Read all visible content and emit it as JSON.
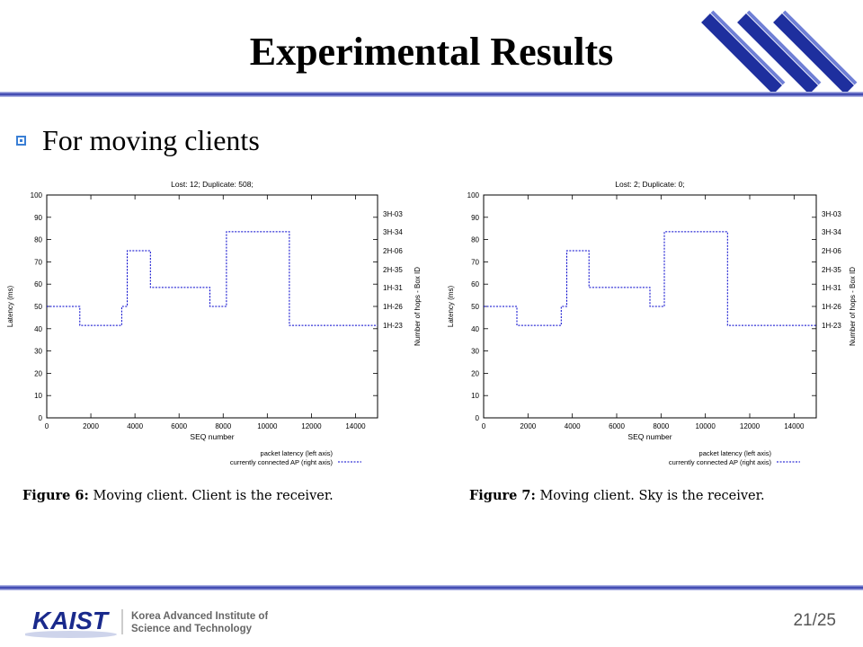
{
  "slide": {
    "title": "Experimental Results",
    "bullet": "For moving clients",
    "page_number": "21/25",
    "logo": {
      "wordmark": "KAIST",
      "line1": "Korea Advanced Institute of",
      "line2": "Science and Technology"
    },
    "colors": {
      "accent_blue": "#2a35a8",
      "bullet_blue": "#3a7fd5",
      "series_blue": "#0000cc"
    }
  },
  "figures": [
    {
      "caption_label": "Figure 6:",
      "caption_text": "Moving client.  Client is the receiver.",
      "chart_title": "Lost: 12; Duplicate: 508;"
    },
    {
      "caption_label": "Figure 7:",
      "caption_text": "Moving client.  Sky is the receiver.",
      "chart_title": "Lost: 2; Duplicate: 0;"
    }
  ],
  "chart_data": [
    {
      "type": "line",
      "title": "Lost: 12; Duplicate: 508;",
      "xlabel": "SEQ number",
      "ylabel": "Latency (ms)",
      "y2label": "Number of hops - Box ID",
      "xlim": [
        0,
        15000
      ],
      "ylim": [
        0,
        100
      ],
      "x_ticks": [
        0,
        2000,
        4000,
        6000,
        8000,
        10000,
        12000,
        14000
      ],
      "y_ticks": [
        0,
        10,
        20,
        30,
        40,
        50,
        60,
        70,
        80,
        90,
        100
      ],
      "y2_ticks": [
        {
          "label": "3H-03",
          "y": 91.5
        },
        {
          "label": "3H-34",
          "y": 83.5
        },
        {
          "label": "2H-06",
          "y": 75
        },
        {
          "label": "2H-35",
          "y": 66.5
        },
        {
          "label": "1H-31",
          "y": 58.5
        },
        {
          "label": "1H-26",
          "y": 50
        },
        {
          "label": "1H-23",
          "y": 41.5
        }
      ],
      "legend": {
        "placement": "bottom-right",
        "entries": [
          "packet latency (left axis)",
          "currently connected AP (right axis)"
        ]
      },
      "series": [
        {
          "name": "currently connected AP (right axis)",
          "x": [
            0,
            1500,
            1500,
            3400,
            3400,
            3650,
            3650,
            4700,
            4700,
            7400,
            7400,
            8150,
            8150,
            11000,
            11000,
            15000
          ],
          "y": [
            50,
            50,
            41.5,
            41.5,
            50,
            50,
            75,
            75,
            58.5,
            58.5,
            50,
            50,
            83.5,
            83.5,
            41.5,
            41.5
          ]
        }
      ]
    },
    {
      "type": "line",
      "title": "Lost: 2; Duplicate: 0;",
      "xlabel": "SEQ number",
      "ylabel": "Latency (ms)",
      "y2label": "Number of hops - Box ID",
      "xlim": [
        0,
        15000
      ],
      "ylim": [
        0,
        100
      ],
      "x_ticks": [
        0,
        2000,
        4000,
        6000,
        8000,
        10000,
        12000,
        14000
      ],
      "y_ticks": [
        0,
        10,
        20,
        30,
        40,
        50,
        60,
        70,
        80,
        90,
        100
      ],
      "y2_ticks": [
        {
          "label": "3H-03",
          "y": 91.5
        },
        {
          "label": "3H-34",
          "y": 83.5
        },
        {
          "label": "2H-06",
          "y": 75
        },
        {
          "label": "2H-35",
          "y": 66.5
        },
        {
          "label": "1H-31",
          "y": 58.5
        },
        {
          "label": "1H-26",
          "y": 50
        },
        {
          "label": "1H-23",
          "y": 41.5
        }
      ],
      "legend": {
        "placement": "bottom-right",
        "entries": [
          "packet latency (left axis)",
          "currently connected AP (right axis)"
        ]
      },
      "series": [
        {
          "name": "currently connected AP (right axis)",
          "x": [
            0,
            1500,
            1500,
            3500,
            3500,
            3750,
            3750,
            4750,
            4750,
            7500,
            7500,
            8150,
            8150,
            11000,
            11000,
            15000
          ],
          "y": [
            50,
            50,
            41.5,
            41.5,
            50,
            50,
            75,
            75,
            58.5,
            58.5,
            50,
            50,
            83.5,
            83.5,
            41.5,
            41.5
          ]
        }
      ]
    }
  ]
}
